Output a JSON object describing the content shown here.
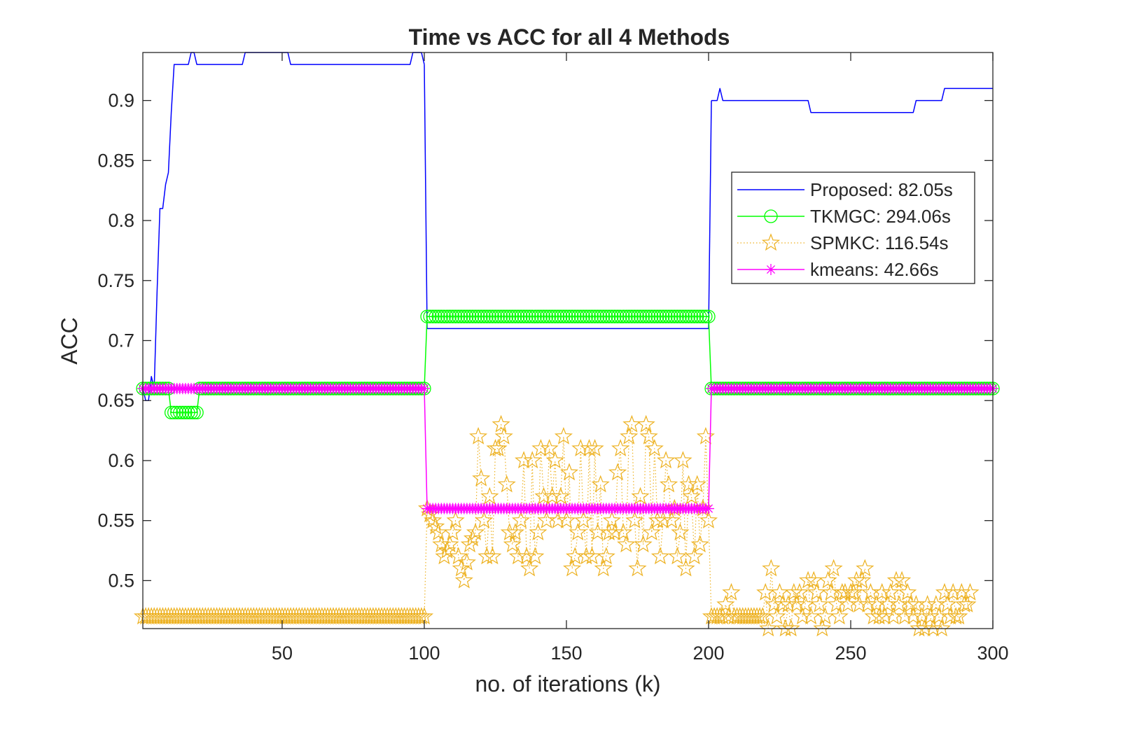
{
  "chart_data": {
    "type": "line",
    "title": "Time vs ACC for all 4 Methods",
    "xlabel": "no. of iterations (k)",
    "ylabel": "ACC",
    "xlim": [
      1,
      300
    ],
    "ylim": [
      0.46,
      0.94
    ],
    "xticks": [
      50,
      100,
      150,
      200,
      250,
      300
    ],
    "xtick_labels": [
      "50",
      "100",
      "150",
      "200",
      "250",
      "300"
    ],
    "yticks": [
      0.5,
      0.55,
      0.6,
      0.65,
      0.7,
      0.75,
      0.8,
      0.85,
      0.9
    ],
    "ytick_labels": [
      "0.5",
      "0.55",
      "0.6",
      "0.65",
      "0.7",
      "0.75",
      "0.8",
      "0.85",
      "0.9"
    ],
    "grid": false,
    "box": true,
    "legend_position": "right",
    "series": [
      {
        "name": "Proposed: 82.05s",
        "color": "#0000ff",
        "marker": "none",
        "line_style": "solid",
        "segments": [
          [
            [
              1,
              0.66
            ],
            [
              2,
              0.65
            ],
            [
              3,
              0.65
            ],
            [
              4,
              0.67
            ],
            [
              5,
              0.66
            ],
            [
              6,
              0.74
            ],
            [
              7,
              0.81
            ],
            [
              8,
              0.81
            ],
            [
              9,
              0.83
            ],
            [
              10,
              0.84
            ],
            [
              11,
              0.89
            ],
            [
              12,
              0.93
            ],
            [
              13,
              0.93
            ],
            [
              14,
              0.93
            ],
            [
              15,
              0.93
            ],
            [
              16,
              0.93
            ],
            [
              17,
              0.93
            ],
            [
              18,
              0.94
            ],
            [
              19,
              0.94
            ],
            [
              20,
              0.93
            ],
            [
              25,
              0.93
            ],
            [
              30,
              0.93
            ],
            [
              35,
              0.93
            ],
            [
              36,
              0.93
            ],
            [
              37,
              0.94
            ],
            [
              45,
              0.94
            ],
            [
              50,
              0.94
            ],
            [
              52,
              0.94
            ],
            [
              53,
              0.93
            ],
            [
              60,
              0.93
            ],
            [
              70,
              0.93
            ],
            [
              80,
              0.93
            ],
            [
              90,
              0.93
            ],
            [
              95,
              0.93
            ],
            [
              96,
              0.94
            ],
            [
              98,
              0.94
            ],
            [
              99,
              0.94
            ],
            [
              100,
              0.93
            ]
          ],
          [
            [
              100,
              0.93
            ],
            [
              101,
              0.71
            ]
          ],
          [
            [
              101,
              0.71
            ],
            [
              120,
              0.71
            ],
            [
              150,
              0.71
            ],
            [
              180,
              0.71
            ],
            [
              200,
              0.71
            ]
          ],
          [
            [
              200,
              0.71
            ],
            [
              201,
              0.9
            ]
          ],
          [
            [
              201,
              0.9
            ],
            [
              203,
              0.9
            ],
            [
              204,
              0.91
            ],
            [
              205,
              0.9
            ],
            [
              215,
              0.9
            ],
            [
              225,
              0.9
            ],
            [
              235,
              0.9
            ],
            [
              236,
              0.89
            ],
            [
              250,
              0.89
            ],
            [
              260,
              0.89
            ],
            [
              272,
              0.89
            ],
            [
              273,
              0.9
            ],
            [
              280,
              0.9
            ],
            [
              282,
              0.9
            ],
            [
              283,
              0.91
            ],
            [
              290,
              0.91
            ],
            [
              300,
              0.91
            ]
          ]
        ]
      },
      {
        "name": "TKMGC: 294.06s",
        "color": "#00ff00",
        "marker": "circle",
        "line_style": "solid",
        "segments": [
          [
            [
              1,
              0.66
            ],
            [
              10,
              0.66
            ],
            [
              11,
              0.64
            ],
            [
              20,
              0.64
            ],
            [
              21,
              0.66
            ],
            [
              100,
              0.66
            ]
          ],
          [
            [
              100,
              0.66
            ],
            [
              101,
              0.72
            ]
          ],
          [
            [
              101,
              0.72
            ],
            [
              200,
              0.72
            ]
          ],
          [
            [
              200,
              0.72
            ],
            [
              201,
              0.66
            ]
          ],
          [
            [
              201,
              0.66
            ],
            [
              300,
              0.66
            ]
          ]
        ]
      },
      {
        "name": "SPMKC: 116.54s",
        "color": "#edb120",
        "marker": "star",
        "line_style": "dotted",
        "segments": [
          [
            [
              1,
              0.47
            ],
            [
              100,
              0.47
            ]
          ],
          [
            [
              100,
              0.47
            ],
            [
              101,
              0.56
            ]
          ],
          [
            [
              101,
              0.56
            ],
            [
              103,
              0.55
            ],
            [
              105,
              0.54
            ],
            [
              107,
              0.52
            ],
            [
              109,
              0.53
            ],
            [
              111,
              0.55
            ],
            [
              112,
              0.52
            ],
            [
              114,
              0.5
            ],
            [
              116,
              0.53
            ],
            [
              118,
              0.54
            ],
            [
              119,
              0.62
            ],
            [
              121,
              0.55
            ],
            [
              122,
              0.52
            ],
            [
              123,
              0.57
            ],
            [
              124,
              0.52
            ],
            [
              125,
              0.61
            ],
            [
              126,
              0.61
            ],
            [
              127,
              0.63
            ],
            [
              128,
              0.62
            ],
            [
              129,
              0.58
            ],
            [
              130,
              0.54
            ],
            [
              131,
              0.53
            ],
            [
              132,
              0.54
            ],
            [
              133,
              0.52
            ],
            [
              134,
              0.55
            ],
            [
              135,
              0.6
            ],
            [
              136,
              0.52
            ],
            [
              137,
              0.51
            ],
            [
              138,
              0.6
            ],
            [
              139,
              0.52
            ],
            [
              140,
              0.54
            ],
            [
              141,
              0.61
            ],
            [
              142,
              0.57
            ],
            [
              143,
              0.55
            ],
            [
              144,
              0.61
            ],
            [
              145,
              0.57
            ],
            [
              146,
              0.6
            ],
            [
              147,
              0.55
            ],
            [
              148,
              0.57
            ],
            [
              149,
              0.62
            ],
            [
              150,
              0.55
            ],
            [
              151,
              0.59
            ],
            [
              152,
              0.51
            ],
            [
              153,
              0.52
            ],
            [
              154,
              0.54
            ],
            [
              155,
              0.61
            ],
            [
              156,
              0.55
            ],
            [
              157,
              0.52
            ],
            [
              158,
              0.61
            ],
            [
              159,
              0.52
            ],
            [
              160,
              0.61
            ],
            [
              161,
              0.54
            ],
            [
              162,
              0.58
            ],
            [
              163,
              0.51
            ],
            [
              164,
              0.52
            ],
            [
              165,
              0.54
            ],
            [
              166,
              0.55
            ],
            [
              167,
              0.54
            ],
            [
              168,
              0.59
            ],
            [
              169,
              0.61
            ],
            [
              170,
              0.54
            ],
            [
              171,
              0.53
            ],
            [
              172,
              0.62
            ],
            [
              173,
              0.63
            ],
            [
              174,
              0.55
            ],
            [
              175,
              0.51
            ],
            [
              176,
              0.57
            ],
            [
              177,
              0.53
            ],
            [
              178,
              0.63
            ],
            [
              179,
              0.62
            ],
            [
              180,
              0.54
            ],
            [
              181,
              0.61
            ],
            [
              182,
              0.55
            ],
            [
              183,
              0.52
            ],
            [
              184,
              0.55
            ],
            [
              185,
              0.6
            ],
            [
              186,
              0.58
            ],
            [
              187,
              0.55
            ],
            [
              188,
              0.56
            ],
            [
              189,
              0.52
            ],
            [
              190,
              0.54
            ],
            [
              191,
              0.6
            ],
            [
              192,
              0.51
            ],
            [
              193,
              0.58
            ],
            [
              194,
              0.57
            ],
            [
              195,
              0.52
            ],
            [
              196,
              0.58
            ],
            [
              197,
              0.53
            ],
            [
              198,
              0.56
            ],
            [
              199,
              0.62
            ],
            [
              200,
              0.55
            ]
          ],
          [
            [
              200,
              0.55
            ],
            [
              201,
              0.47
            ]
          ],
          [
            [
              201,
              0.47
            ],
            [
              205,
              0.47
            ],
            [
              206,
              0.48
            ],
            [
              207,
              0.47
            ],
            [
              208,
              0.49
            ],
            [
              209,
              0.47
            ],
            [
              213,
              0.47
            ],
            [
              218,
              0.47
            ],
            [
              219,
              0.47
            ],
            [
              220,
              0.49
            ],
            [
              221,
              0.46
            ],
            [
              222,
              0.51
            ],
            [
              223,
              0.48
            ],
            [
              224,
              0.47
            ],
            [
              225,
              0.49
            ],
            [
              226,
              0.48
            ],
            [
              227,
              0.46
            ],
            [
              228,
              0.48
            ],
            [
              229,
              0.46
            ],
            [
              230,
              0.49
            ],
            [
              231,
              0.48
            ],
            [
              232,
              0.49
            ],
            [
              233,
              0.47
            ],
            [
              234,
              0.48
            ],
            [
              235,
              0.5
            ],
            [
              236,
              0.47
            ],
            [
              237,
              0.5
            ],
            [
              238,
              0.49
            ],
            [
              239,
              0.48
            ],
            [
              240,
              0.46
            ],
            [
              241,
              0.47
            ],
            [
              242,
              0.5
            ],
            [
              243,
              0.49
            ],
            [
              244,
              0.51
            ],
            [
              245,
              0.48
            ],
            [
              246,
              0.47
            ],
            [
              247,
              0.49
            ],
            [
              248,
              0.49
            ],
            [
              249,
              0.48
            ],
            [
              250,
              0.49
            ],
            [
              251,
              0.49
            ],
            [
              252,
              0.5
            ],
            [
              253,
              0.48
            ],
            [
              254,
              0.5
            ],
            [
              255,
              0.51
            ],
            [
              256,
              0.48
            ],
            [
              257,
              0.49
            ],
            [
              258,
              0.47
            ],
            [
              259,
              0.48
            ],
            [
              260,
              0.47
            ],
            [
              261,
              0.49
            ],
            [
              262,
              0.47
            ],
            [
              263,
              0.48
            ],
            [
              264,
              0.49
            ],
            [
              265,
              0.47
            ],
            [
              266,
              0.5
            ],
            [
              267,
              0.48
            ],
            [
              268,
              0.5
            ],
            [
              269,
              0.47
            ],
            [
              270,
              0.49
            ],
            [
              271,
              0.48
            ],
            [
              272,
              0.47
            ],
            [
              273,
              0.48
            ],
            [
              274,
              0.46
            ],
            [
              275,
              0.47
            ],
            [
              276,
              0.46
            ],
            [
              277,
              0.48
            ],
            [
              278,
              0.47
            ],
            [
              279,
              0.46
            ],
            [
              280,
              0.48
            ],
            [
              281,
              0.47
            ],
            [
              282,
              0.46
            ],
            [
              283,
              0.49
            ],
            [
              284,
              0.48
            ],
            [
              285,
              0.47
            ],
            [
              286,
              0.49
            ],
            [
              287,
              0.47
            ],
            [
              288,
              0.47
            ],
            [
              289,
              0.49
            ],
            [
              290,
              0.48
            ],
            [
              291,
              0.48
            ],
            [
              292,
              0.49
            ]
          ]
        ]
      },
      {
        "name": "kmeans: 42.66s",
        "color": "#ff00ff",
        "marker": "asterisk",
        "line_style": "solid",
        "segments": [
          [
            [
              1,
              0.66
            ],
            [
              100,
              0.66
            ]
          ],
          [
            [
              100,
              0.66
            ],
            [
              101,
              0.56
            ]
          ],
          [
            [
              101,
              0.56
            ],
            [
              200,
              0.56
            ]
          ],
          [
            [
              200,
              0.56
            ],
            [
              201,
              0.66
            ]
          ],
          [
            [
              201,
              0.66
            ],
            [
              300,
              0.66
            ]
          ]
        ]
      }
    ]
  }
}
